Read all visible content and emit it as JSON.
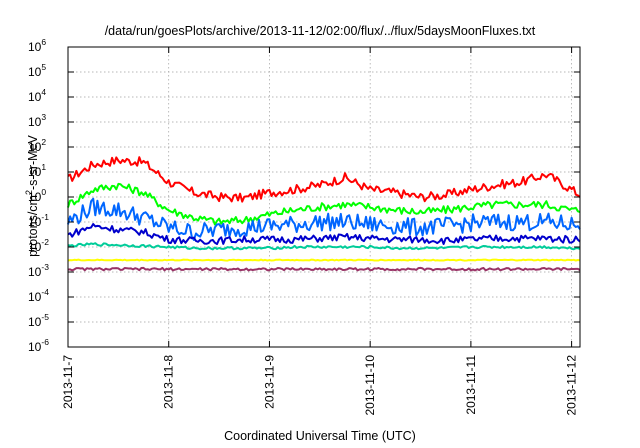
{
  "chart_data": {
    "type": "line",
    "title": "/data/run/goesPlots/archive/2013-11-12/02:00/flux/../flux/5daysMoonFluxes.txt",
    "xlabel": "Coordinated Universal Time (UTC)",
    "ylabel": {
      "base": "protons/cm",
      "sup": "2",
      "rest": "-s-sr-MeV"
    },
    "yscale": "log",
    "ylim": [
      1e-06,
      1000000.0
    ],
    "xlim": [
      "2013-11-07",
      "2013-11-12 02:00"
    ],
    "grid": true,
    "y_tick_labels": [
      {
        "base": "10",
        "exp": "-6"
      },
      {
        "base": "10",
        "exp": "-5"
      },
      {
        "base": "10",
        "exp": "-4"
      },
      {
        "base": "10",
        "exp": "-3"
      },
      {
        "base": "10",
        "exp": "-2"
      },
      {
        "base": "10",
        "exp": "-1"
      },
      {
        "base": "10",
        "exp": "0"
      },
      {
        "base": "10",
        "exp": "1"
      },
      {
        "base": "10",
        "exp": "2"
      },
      {
        "base": "10",
        "exp": "3"
      },
      {
        "base": "10",
        "exp": "4"
      },
      {
        "base": "10",
        "exp": "5"
      },
      {
        "base": "10",
        "exp": "6"
      }
    ],
    "x_tick_labels": [
      "2013-11-7",
      "2013-11-8",
      "2013-11-9",
      "2013-11-10",
      "2013-11-11",
      "2013-11-12"
    ],
    "series": [
      {
        "color": "#ff0000",
        "x": [
          "2013-11-07 00:00",
          "2013-11-07 06:00",
          "2013-11-07 12:00",
          "2013-11-07 18:00",
          "2013-11-08 00:00",
          "2013-11-08 06:00",
          "2013-11-08 12:00",
          "2013-11-08 18:00",
          "2013-11-09 00:00",
          "2013-11-09 06:00",
          "2013-11-09 12:00",
          "2013-11-09 18:00",
          "2013-11-10 00:00",
          "2013-11-10 06:00",
          "2013-11-10 12:00",
          "2013-11-10 18:00",
          "2013-11-11 00:00",
          "2013-11-11 06:00",
          "2013-11-11 12:00",
          "2013-11-11 18:00",
          "2013-11-12 00:00",
          "2013-11-12 02:00"
        ],
        "y": [
          5,
          20,
          30,
          25,
          4,
          1.5,
          1,
          0.9,
          1.5,
          2,
          3,
          6,
          2,
          1.5,
          1,
          1.2,
          2,
          3,
          4,
          8,
          2,
          1.2
        ]
      },
      {
        "color": "#00ff00",
        "x": [
          "2013-11-07 00:00",
          "2013-11-07 06:00",
          "2013-11-07 12:00",
          "2013-11-07 18:00",
          "2013-11-08 00:00",
          "2013-11-08 06:00",
          "2013-11-08 12:00",
          "2013-11-08 18:00",
          "2013-11-09 00:00",
          "2013-11-09 06:00",
          "2013-11-09 12:00",
          "2013-11-09 18:00",
          "2013-11-10 00:00",
          "2013-11-10 06:00",
          "2013-11-10 12:00",
          "2013-11-10 18:00",
          "2013-11-11 00:00",
          "2013-11-11 06:00",
          "2013-11-11 12:00",
          "2013-11-11 18:00",
          "2013-11-12 00:00",
          "2013-11-12 02:00"
        ],
        "y": [
          0.5,
          2,
          3,
          1.5,
          0.3,
          0.15,
          0.1,
          0.12,
          0.2,
          0.3,
          0.4,
          0.5,
          0.4,
          0.3,
          0.25,
          0.3,
          0.4,
          0.5,
          0.5,
          0.5,
          0.3,
          0.3
        ]
      },
      {
        "color": "#0066ff",
        "x": [
          "2013-11-07 00:00",
          "2013-11-07 06:00",
          "2013-11-07 12:00",
          "2013-11-07 18:00",
          "2013-11-08 00:00",
          "2013-11-08 06:00",
          "2013-11-08 12:00",
          "2013-11-08 18:00",
          "2013-11-09 00:00",
          "2013-11-09 06:00",
          "2013-11-09 12:00",
          "2013-11-09 18:00",
          "2013-11-10 00:00",
          "2013-11-10 06:00",
          "2013-11-10 12:00",
          "2013-11-10 18:00",
          "2013-11-11 00:00",
          "2013-11-11 06:00",
          "2013-11-11 12:00",
          "2013-11-11 18:00",
          "2013-11-12 00:00",
          "2013-11-12 02:00"
        ],
        "y": [
          0.1,
          0.4,
          0.3,
          0.15,
          0.06,
          0.04,
          0.05,
          0.06,
          0.07,
          0.08,
          0.1,
          0.1,
          0.08,
          0.07,
          0.06,
          0.07,
          0.09,
          0.1,
          0.1,
          0.1,
          0.08,
          0.08
        ]
      },
      {
        "color": "#0000cc",
        "x": [
          "2013-11-07 00:00",
          "2013-11-07 06:00",
          "2013-11-07 12:00",
          "2013-11-07 18:00",
          "2013-11-08 00:00",
          "2013-11-08 06:00",
          "2013-11-08 12:00",
          "2013-11-08 18:00",
          "2013-11-09 00:00",
          "2013-11-09 06:00",
          "2013-11-09 12:00",
          "2013-11-09 18:00",
          "2013-11-10 00:00",
          "2013-11-10 06:00",
          "2013-11-10 12:00",
          "2013-11-10 18:00",
          "2013-11-11 00:00",
          "2013-11-11 06:00",
          "2013-11-11 12:00",
          "2013-11-11 18:00",
          "2013-11-12 00:00",
          "2013-11-12 02:00"
        ],
        "y": [
          0.03,
          0.07,
          0.05,
          0.04,
          0.02,
          0.018,
          0.018,
          0.02,
          0.02,
          0.02,
          0.022,
          0.025,
          0.022,
          0.02,
          0.02,
          0.018,
          0.02,
          0.022,
          0.022,
          0.022,
          0.02,
          0.02
        ]
      },
      {
        "color": "#00cc99",
        "x": [
          "2013-11-07 00:00",
          "2013-11-07 06:00",
          "2013-11-07 12:00",
          "2013-11-07 18:00",
          "2013-11-08 00:00",
          "2013-11-08 06:00",
          "2013-11-08 12:00",
          "2013-11-08 18:00",
          "2013-11-09 00:00",
          "2013-11-09 06:00",
          "2013-11-09 12:00",
          "2013-11-09 18:00",
          "2013-11-10 00:00",
          "2013-11-10 06:00",
          "2013-11-10 12:00",
          "2013-11-10 18:00",
          "2013-11-11 00:00",
          "2013-11-11 06:00",
          "2013-11-11 12:00",
          "2013-11-11 18:00",
          "2013-11-12 00:00",
          "2013-11-12 02:00"
        ],
        "y": [
          0.011,
          0.013,
          0.012,
          0.011,
          0.01,
          0.009,
          0.009,
          0.009,
          0.009,
          0.01,
          0.01,
          0.01,
          0.01,
          0.009,
          0.009,
          0.009,
          0.01,
          0.01,
          0.01,
          0.01,
          0.009,
          0.009
        ]
      },
      {
        "color": "#ffff00",
        "x": [
          "2013-11-07 00:00",
          "2013-11-12 02:00"
        ],
        "y": [
          0.003,
          0.003
        ]
      },
      {
        "color": "#993366",
        "x": [
          "2013-11-07 00:00",
          "2013-11-12 02:00"
        ],
        "y": [
          0.0013,
          0.0013
        ]
      }
    ]
  }
}
